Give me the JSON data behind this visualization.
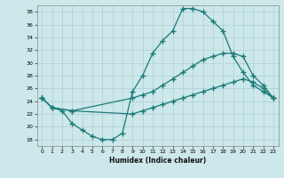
{
  "xlabel": "Humidex (Indice chaleur)",
  "xlim": [
    -0.5,
    23.5
  ],
  "ylim": [
    17,
    39
  ],
  "xticks": [
    0,
    1,
    2,
    3,
    4,
    5,
    6,
    7,
    8,
    9,
    10,
    11,
    12,
    13,
    14,
    15,
    16,
    17,
    18,
    19,
    20,
    21,
    22,
    23
  ],
  "yticks": [
    18,
    20,
    22,
    24,
    26,
    28,
    30,
    32,
    34,
    36,
    38
  ],
  "bg_color": "#cce8ea",
  "line_color": "#1a7a78",
  "grid_color": "#aecfd2",
  "line1_x": [
    0,
    1,
    2,
    3,
    4,
    5,
    6,
    7,
    8,
    9,
    10,
    11,
    12,
    13,
    14,
    15,
    16,
    17,
    18,
    19,
    20,
    21,
    22,
    23
  ],
  "line1_y": [
    24.5,
    23.0,
    22.5,
    20.5,
    19.5,
    18.5,
    18.0,
    18.0,
    19.0,
    25.5,
    28.0,
    31.5,
    33.5,
    35.0,
    38.5,
    38.5,
    38.0,
    36.5,
    35.0,
    31.0,
    28.5,
    26.5,
    25.5,
    24.5
  ],
  "line2_x": [
    0,
    1,
    3,
    9,
    10,
    11,
    12,
    13,
    14,
    15,
    16,
    17,
    18,
    19,
    20,
    21,
    22,
    23
  ],
  "line2_y": [
    24.5,
    23.0,
    22.5,
    24.5,
    25.0,
    25.5,
    26.5,
    27.5,
    28.5,
    29.5,
    30.5,
    31.0,
    31.5,
    31.5,
    31.0,
    28.0,
    26.5,
    24.5
  ],
  "line3_x": [
    0,
    1,
    3,
    9,
    10,
    11,
    12,
    13,
    14,
    15,
    16,
    17,
    18,
    19,
    20,
    21,
    22,
    23
  ],
  "line3_y": [
    24.5,
    23.0,
    22.5,
    22.0,
    22.5,
    23.0,
    23.5,
    24.0,
    24.5,
    25.0,
    25.5,
    26.0,
    26.5,
    27.0,
    27.5,
    27.0,
    26.0,
    24.5
  ]
}
